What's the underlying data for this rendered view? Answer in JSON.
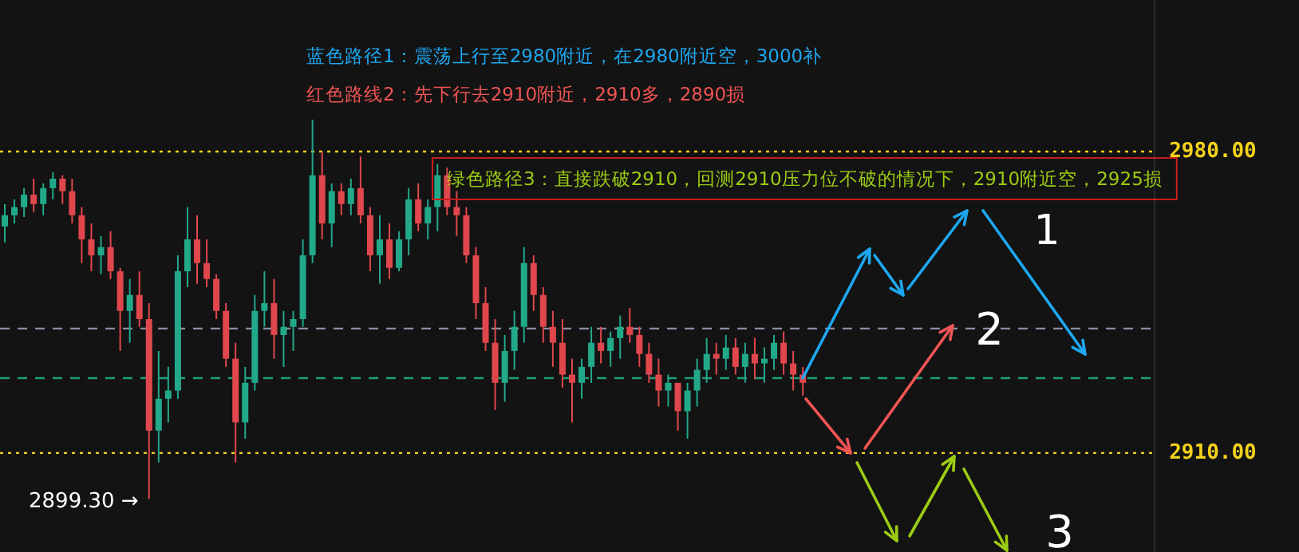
{
  "chart_data": {
    "type": "candlestick",
    "annotations": [
      "蓝色路径1：震荡上行至2980附近，在2980附近空，3000补",
      "红色路线2：先下行去2910附近，2910多，2890损",
      "绿色路径3：直接跌破2910，回测2910压力位不破的情况下，2910附近空，2925损",
      "2899.30 →",
      "1",
      "2",
      "3"
    ],
    "ylim": [
      2887,
      3015.2
    ],
    "yticks": [
      {
        "value": 2980,
        "label": "2980.00"
      },
      {
        "value": 2910,
        "label": "2910.00"
      }
    ],
    "tick_labels": "y",
    "categories": [
      null,
      null,
      null,
      null,
      null,
      null,
      null,
      null,
      null,
      null,
      null,
      null,
      null,
      null,
      null,
      null,
      null,
      null,
      null,
      null,
      null,
      null,
      null,
      null,
      null,
      null,
      null,
      null,
      null,
      null,
      null,
      null,
      null,
      null,
      null,
      null,
      null,
      null,
      null,
      null,
      null,
      null,
      null,
      null,
      null,
      null,
      null,
      null,
      null,
      null,
      null,
      null,
      null,
      null,
      null,
      null,
      null,
      null,
      null,
      null,
      null,
      null,
      null,
      null,
      null,
      null,
      null,
      null,
      null,
      null,
      null,
      null,
      null,
      null,
      null,
      null,
      null,
      null,
      null,
      null,
      null,
      null,
      null,
      null,
      null,
      null,
      null,
      null,
      null,
      null,
      null,
      null,
      null,
      null,
      null,
      null,
      null,
      null,
      null,
      null,
      null,
      null,
      null,
      null,
      null,
      null,
      null,
      null,
      null,
      null,
      null,
      null,
      null,
      null,
      null,
      null,
      null,
      null,
      null,
      null
    ],
    "ohlc": [
      [
        2962.6,
        2967.8,
        2958.9,
        2965.2
      ],
      [
        2965.2,
        2968.9,
        2963.3,
        2967.1
      ],
      [
        2967.1,
        2971.5,
        2964.8,
        2970.0
      ],
      [
        2970.0,
        2973.7,
        2965.9,
        2967.8
      ],
      [
        2967.8,
        2972.6,
        2965.2,
        2971.5
      ],
      [
        2971.5,
        2975.2,
        2968.9,
        2973.7
      ],
      [
        2973.7,
        2974.5,
        2967.8,
        2970.8
      ],
      [
        2970.8,
        2973.7,
        2963.3,
        2965.2
      ],
      [
        2965.2,
        2967.1,
        2954.1,
        2959.6
      ],
      [
        2959.6,
        2963.3,
        2952.2,
        2955.9
      ],
      [
        2955.9,
        2960.4,
        2951.5,
        2957.8
      ],
      [
        2957.8,
        2961.5,
        2950.4,
        2952.2
      ],
      [
        2952.2,
        2953.0,
        2933.7,
        2943.0
      ],
      [
        2943.0,
        2950.4,
        2935.6,
        2946.7
      ],
      [
        2946.7,
        2952.2,
        2939.3,
        2941.1
      ],
      [
        2941.1,
        2944.8,
        2899.3,
        2915.2
      ],
      [
        2915.2,
        2933.7,
        2907.8,
        2922.6
      ],
      [
        2922.6,
        2930.0,
        2917.1,
        2924.5
      ],
      [
        2924.5,
        2955.9,
        2922.6,
        2952.2
      ],
      [
        2952.2,
        2967.1,
        2948.5,
        2959.6
      ],
      [
        2959.6,
        2965.2,
        2949.3,
        2954.1
      ],
      [
        2954.1,
        2959.6,
        2948.5,
        2950.4
      ],
      [
        2950.4,
        2951.5,
        2941.1,
        2943.0
      ],
      [
        2943.0,
        2944.8,
        2930.0,
        2931.9
      ],
      [
        2931.9,
        2935.6,
        2907.8,
        2917.1
      ],
      [
        2917.1,
        2930.0,
        2913.3,
        2926.3
      ],
      [
        2926.3,
        2946.7,
        2924.5,
        2943.0
      ],
      [
        2943.0,
        2952.2,
        2939.3,
        2944.8
      ],
      [
        2944.8,
        2950.4,
        2931.9,
        2937.4
      ],
      [
        2937.4,
        2943.0,
        2930.0,
        2939.3
      ],
      [
        2939.3,
        2943.0,
        2933.7,
        2941.1
      ],
      [
        2941.1,
        2959.6,
        2939.3,
        2955.9
      ],
      [
        2955.9,
        2987.4,
        2954.1,
        2974.5
      ],
      [
        2974.5,
        2980.0,
        2959.6,
        2963.3
      ],
      [
        2963.3,
        2972.6,
        2957.8,
        2970.8
      ],
      [
        2970.8,
        2972.6,
        2965.2,
        2967.8
      ],
      [
        2967.8,
        2973.7,
        2965.2,
        2971.5
      ],
      [
        2971.5,
        2978.9,
        2963.3,
        2965.2
      ],
      [
        2965.2,
        2967.1,
        2952.2,
        2955.9
      ],
      [
        2955.9,
        2965.2,
        2949.3,
        2959.6
      ],
      [
        2959.6,
        2963.3,
        2950.4,
        2953.0
      ],
      [
        2953.0,
        2961.5,
        2952.2,
        2959.6
      ],
      [
        2959.6,
        2971.5,
        2955.9,
        2968.9
      ],
      [
        2968.9,
        2972.6,
        2961.5,
        2963.3
      ],
      [
        2963.3,
        2968.9,
        2959.6,
        2967.1
      ],
      [
        2967.1,
        2977.1,
        2961.5,
        2974.5
      ],
      [
        2974.5,
        2976.3,
        2965.2,
        2967.1
      ],
      [
        2967.1,
        2970.8,
        2960.4,
        2965.2
      ],
      [
        2965.2,
        2967.1,
        2954.1,
        2955.9
      ],
      [
        2955.9,
        2957.8,
        2941.1,
        2944.8
      ],
      [
        2944.8,
        2948.5,
        2933.7,
        2935.6
      ],
      [
        2935.6,
        2941.1,
        2920.0,
        2926.3
      ],
      [
        2926.3,
        2937.4,
        2921.9,
        2933.7
      ],
      [
        2933.7,
        2943.0,
        2929.3,
        2939.3
      ],
      [
        2939.3,
        2957.8,
        2935.6,
        2954.1
      ],
      [
        2954.1,
        2955.9,
        2943.0,
        2946.7
      ],
      [
        2946.7,
        2948.5,
        2935.6,
        2939.3
      ],
      [
        2939.3,
        2943.0,
        2930.0,
        2935.6
      ],
      [
        2935.6,
        2941.1,
        2925.2,
        2928.2
      ],
      [
        2928.2,
        2931.9,
        2917.1,
        2926.3
      ],
      [
        2926.3,
        2931.9,
        2922.6,
        2930.0
      ],
      [
        2930.0,
        2939.3,
        2926.3,
        2935.6
      ],
      [
        2935.6,
        2939.3,
        2930.8,
        2933.7
      ],
      [
        2933.7,
        2938.2,
        2930.0,
        2936.7
      ],
      [
        2936.7,
        2941.9,
        2931.9,
        2939.3
      ],
      [
        2939.3,
        2943.7,
        2935.6,
        2937.4
      ],
      [
        2937.4,
        2939.3,
        2930.0,
        2933.0
      ],
      [
        2933.0,
        2935.6,
        2926.3,
        2928.2
      ],
      [
        2928.2,
        2931.9,
        2920.8,
        2924.5
      ],
      [
        2924.5,
        2928.2,
        2920.8,
        2926.3
      ],
      [
        2926.3,
        2926.3,
        2915.2,
        2919.7
      ],
      [
        2919.7,
        2926.3,
        2913.3,
        2924.5
      ],
      [
        2924.5,
        2931.9,
        2920.8,
        2929.3
      ],
      [
        2929.3,
        2936.7,
        2926.3,
        2933.0
      ],
      [
        2933.0,
        2935.6,
        2928.2,
        2931.9
      ],
      [
        2931.9,
        2937.4,
        2929.3,
        2934.5
      ],
      [
        2934.5,
        2936.7,
        2928.2,
        2930.0
      ],
      [
        2930.0,
        2935.6,
        2926.3,
        2933.0
      ],
      [
        2933.0,
        2936.7,
        2927.1,
        2930.8
      ],
      [
        2930.8,
        2934.5,
        2926.3,
        2931.9
      ],
      [
        2931.9,
        2937.4,
        2929.3,
        2935.6
      ],
      [
        2935.6,
        2938.2,
        2928.2,
        2930.8
      ],
      [
        2930.8,
        2933.7,
        2924.5,
        2928.2
      ],
      [
        2928.2,
        2930.0,
        2923.3,
        2926.3
      ],
      null,
      null,
      null,
      null,
      null,
      null,
      null,
      null,
      null,
      null,
      null,
      null,
      null,
      null,
      null,
      null,
      null,
      null,
      null,
      null,
      null,
      null,
      null,
      null,
      null,
      null,
      null,
      null,
      null,
      null,
      null,
      null,
      null,
      null,
      null,
      null
    ],
    "ref_lines": [
      {
        "axis": "y",
        "value": 2980,
        "color": "#f2d21b",
        "line_style": "dotted"
      },
      {
        "axis": "y",
        "value": 2910,
        "color": "#f2d21b",
        "line_style": "dotted"
      },
      {
        "axis": "y",
        "value": 2938.9,
        "color": "#8a8ea6",
        "line_style": "dashed"
      },
      {
        "axis": "y",
        "value": 2927.4,
        "color": "#1f9e7c",
        "line_style": "dashed"
      }
    ]
  }
}
